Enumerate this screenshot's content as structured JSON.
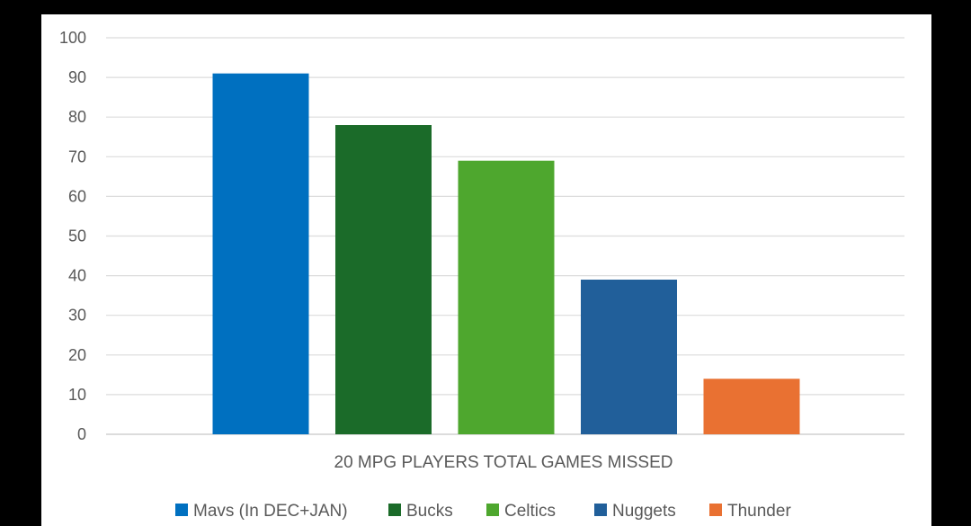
{
  "chart_data": {
    "type": "bar",
    "title": "",
    "xlabel": "20 MPG PLAYERS TOTAL GAMES MISSED",
    "ylabel": "",
    "ylim": [
      0,
      100
    ],
    "yticks": [
      0,
      10,
      20,
      30,
      40,
      50,
      60,
      70,
      80,
      90,
      100
    ],
    "grid": true,
    "legend_position": "bottom",
    "series": [
      {
        "name": "Mavs (In DEC+JAN)",
        "value": 91,
        "color": "#0070c0"
      },
      {
        "name": "Bucks",
        "value": 78,
        "color": "#1b6b29"
      },
      {
        "name": "Celtics",
        "value": 69,
        "color": "#4ea72e"
      },
      {
        "name": "Nuggets",
        "value": 39,
        "color": "#215f9a"
      },
      {
        "name": "Thunder",
        "value": 14,
        "color": "#e97132"
      }
    ]
  }
}
